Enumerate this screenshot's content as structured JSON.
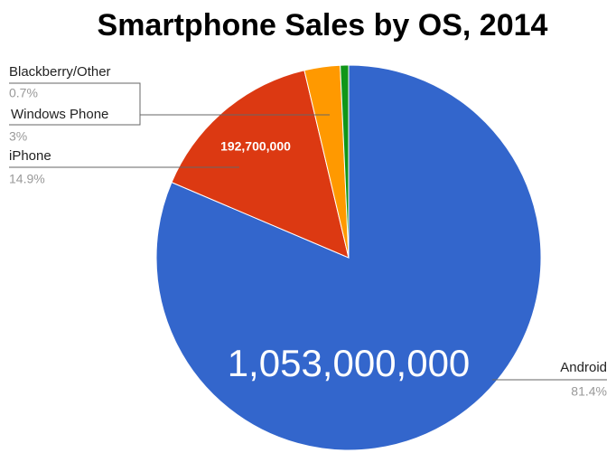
{
  "chart_data": {
    "type": "pie",
    "title": "Smartphone Sales by OS, 2014",
    "categories": [
      "Android",
      "iPhone",
      "Windows Phone",
      "Blackberry/Other"
    ],
    "values": [
      81.4,
      14.9,
      3,
      0.7
    ],
    "value_labels": [
      "81.4%",
      "14.9%",
      "3%",
      "0.7%"
    ],
    "counts": [
      1053000000,
      192700000,
      null,
      null
    ],
    "count_labels": [
      "1,053,000,000",
      "192,700,000",
      null,
      null
    ],
    "colors": [
      "#3366cc",
      "#dc3912",
      "#ff9900",
      "#109618"
    ]
  }
}
